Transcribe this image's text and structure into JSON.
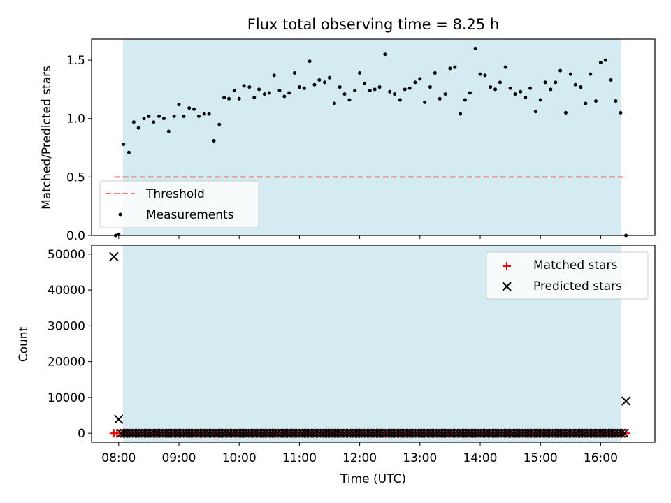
{
  "chart_data": [
    {
      "type": "scatter",
      "title": "Flux total observing time = 8.25 h",
      "xlabel": "",
      "ylabel": "Matched/Predicted stars",
      "ylim": [
        0,
        1.68
      ],
      "yticks": [
        "0.0",
        "0.5",
        "1.0",
        "1.5"
      ],
      "ytick_values": [
        0,
        0.5,
        1.0,
        1.5
      ],
      "xlim_hours": [
        7.55,
        16.9
      ],
      "observing_window_hours": [
        8.07,
        16.34
      ],
      "shade_color": "#d4ebf1",
      "threshold": {
        "name": "Threshold",
        "value": 0.5,
        "x_range_hours": [
          7.93,
          16.43
        ],
        "color": "#f07878"
      },
      "legend": {
        "location": "lower-left",
        "entries": [
          "Threshold",
          "Measurements"
        ]
      },
      "series": [
        {
          "name": "Measurements",
          "color": "#000000",
          "x_hours": [
            7.95,
            8.0,
            8.08,
            8.17,
            8.25,
            8.33,
            8.42,
            8.5,
            8.58,
            8.67,
            8.75,
            8.83,
            8.92,
            9.0,
            9.08,
            9.17,
            9.25,
            9.33,
            9.42,
            9.5,
            9.58,
            9.67,
            9.75,
            9.83,
            9.92,
            10.0,
            10.08,
            10.17,
            10.25,
            10.33,
            10.42,
            10.5,
            10.58,
            10.67,
            10.75,
            10.83,
            10.92,
            11.0,
            11.08,
            11.17,
            11.25,
            11.33,
            11.42,
            11.5,
            11.58,
            11.67,
            11.75,
            11.83,
            11.92,
            12.0,
            12.08,
            12.17,
            12.25,
            12.33,
            12.42,
            12.5,
            12.58,
            12.67,
            12.75,
            12.83,
            12.92,
            13.0,
            13.08,
            13.17,
            13.25,
            13.33,
            13.42,
            13.5,
            13.58,
            13.67,
            13.75,
            13.83,
            13.92,
            14.0,
            14.08,
            14.17,
            14.25,
            14.33,
            14.42,
            14.5,
            14.58,
            14.67,
            14.75,
            14.83,
            14.92,
            15.0,
            15.08,
            15.17,
            15.25,
            15.33,
            15.42,
            15.5,
            15.58,
            15.67,
            15.75,
            15.83,
            15.92,
            16.0,
            16.08,
            16.17,
            16.25,
            16.33,
            16.42
          ],
          "values": [
            0.0,
            0.01,
            0.78,
            0.71,
            0.97,
            0.92,
            1.0,
            1.02,
            0.97,
            1.02,
            1.0,
            0.89,
            1.02,
            1.12,
            1.02,
            1.09,
            1.08,
            1.02,
            1.04,
            1.04,
            0.81,
            0.95,
            1.18,
            1.17,
            1.24,
            1.17,
            1.28,
            1.27,
            1.18,
            1.25,
            1.21,
            1.22,
            1.37,
            1.24,
            1.19,
            1.22,
            1.39,
            1.27,
            1.26,
            1.49,
            1.29,
            1.33,
            1.31,
            1.35,
            1.13,
            1.27,
            1.21,
            1.16,
            1.24,
            1.39,
            1.3,
            1.24,
            1.25,
            1.27,
            1.55,
            1.23,
            1.21,
            1.16,
            1.25,
            1.26,
            1.31,
            1.34,
            1.14,
            1.27,
            1.39,
            1.17,
            1.21,
            1.43,
            1.44,
            1.04,
            1.16,
            1.22,
            1.6,
            1.38,
            1.37,
            1.27,
            1.25,
            1.31,
            1.44,
            1.26,
            1.21,
            1.23,
            1.18,
            1.26,
            1.06,
            1.16,
            1.31,
            1.25,
            1.31,
            1.41,
            1.05,
            1.38,
            1.29,
            1.27,
            1.13,
            1.38,
            1.15,
            1.48,
            1.5,
            1.33,
            1.15,
            1.05,
            0.0
          ]
        }
      ]
    },
    {
      "type": "scatter",
      "title": "",
      "xlabel": "Time (UTC)",
      "ylabel": "Count",
      "ylim": [
        -2500,
        52500
      ],
      "yticks": [
        "0",
        "10000",
        "20000",
        "30000",
        "40000",
        "50000"
      ],
      "ytick_values": [
        0,
        10000,
        20000,
        30000,
        40000,
        50000
      ],
      "xticks": [
        "08:00",
        "09:00",
        "10:00",
        "11:00",
        "12:00",
        "13:00",
        "14:00",
        "15:00",
        "16:00"
      ],
      "xtick_hours": [
        8,
        9,
        10,
        11,
        12,
        13,
        14,
        15,
        16
      ],
      "xlim_hours": [
        7.55,
        16.9
      ],
      "observing_window_hours": [
        8.07,
        16.34
      ],
      "shade_color": "#d4ebf1",
      "legend": {
        "location": "top-right",
        "entries": [
          "Matched stars",
          "Predicted stars"
        ]
      },
      "series": [
        {
          "name": "Matched stars",
          "marker": "plus",
          "color": "#ff0000",
          "x_start_hours": 7.92,
          "x_end_hours": 16.43,
          "x_step_hours": 0.05,
          "values_constant": 0
        },
        {
          "name": "Predicted stars",
          "marker": "x",
          "color": "#000000",
          "x_start_hours": 8.04,
          "x_end_hours": 16.39,
          "x_step_hours": 0.05,
          "values_constant": 0,
          "outliers": [
            {
              "x_hours": 7.92,
              "value": 49300
            },
            {
              "x_hours": 8.0,
              "value": 3900
            },
            {
              "x_hours": 16.42,
              "value": 9000
            }
          ]
        }
      ]
    }
  ]
}
